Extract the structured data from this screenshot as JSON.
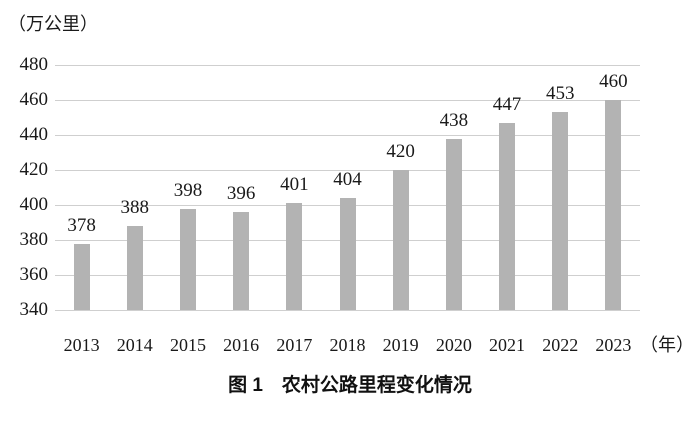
{
  "caption": "图 1　农村公路里程变化情况",
  "chart_data": {
    "type": "bar",
    "title": "图 1 农村公路里程变化情况",
    "unit_label": "（万公里）",
    "x_unit_label": "（年）",
    "categories": [
      "2013",
      "2014",
      "2015",
      "2016",
      "2017",
      "2018",
      "2019",
      "2020",
      "2021",
      "2022",
      "2023"
    ],
    "values": [
      378,
      388,
      398,
      396,
      401,
      404,
      420,
      438,
      447,
      453,
      460
    ],
    "yticks": [
      340,
      360,
      380,
      400,
      420,
      440,
      460,
      480
    ],
    "ylim": [
      340,
      480
    ],
    "grid": true,
    "legend": false,
    "bar_color": "#b3b3b3",
    "grid_color": "#cfcfcf"
  }
}
